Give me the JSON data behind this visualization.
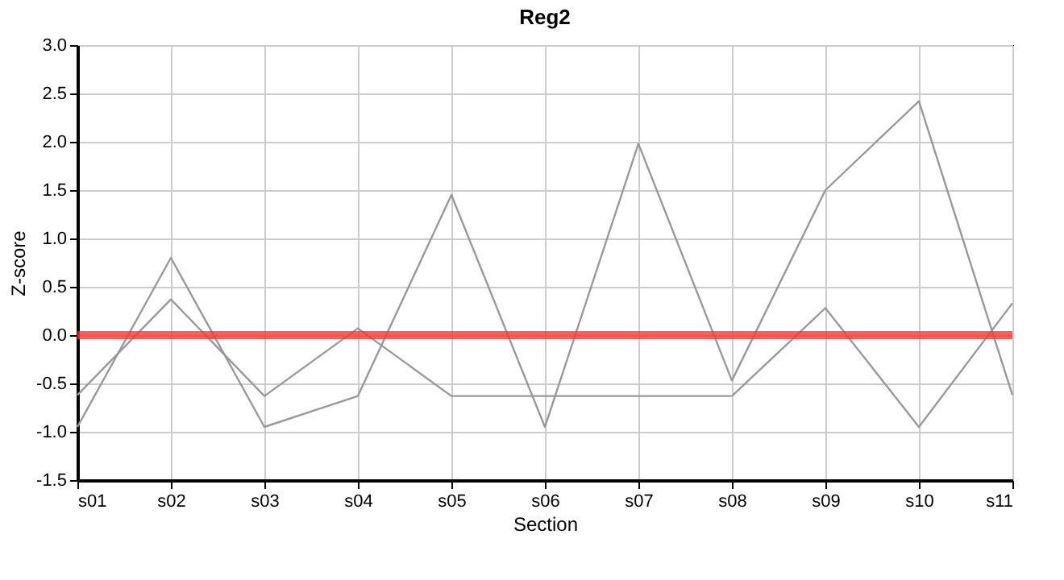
{
  "chart_data": {
    "type": "line",
    "title": "Reg2",
    "xlabel": "Section",
    "ylabel": "Z-score",
    "categories": [
      "s01",
      "s02",
      "s03",
      "s04",
      "s05",
      "s06",
      "s07",
      "s08",
      "s09",
      "s10",
      "s11"
    ],
    "series": [
      {
        "color": "#999999",
        "values": [
          -0.62,
          0.37,
          -0.63,
          0.07,
          -0.63,
          -0.63,
          -0.63,
          -0.63,
          0.28,
          -0.95,
          0.33
        ]
      },
      {
        "color": "#999999",
        "values": [
          -0.95,
          0.8,
          -0.95,
          -0.63,
          1.45,
          -0.95,
          1.98,
          -0.47,
          1.5,
          2.42,
          -0.62
        ]
      }
    ],
    "ylim": [
      -1.5,
      3.0
    ],
    "yticks": [
      {
        "value": -1.5,
        "label": "-1.5"
      },
      {
        "value": -1.0,
        "label": "-1.0"
      },
      {
        "value": -0.5,
        "label": "-0.5"
      },
      {
        "value": 0,
        "label": "0.0"
      },
      {
        "value": 0.5,
        "label": "0.5"
      },
      {
        "value": 1.0,
        "label": "1.0"
      },
      {
        "value": 1.5,
        "label": "1.5"
      },
      {
        "value": 2.0,
        "label": "2.0"
      },
      {
        "value": 2.5,
        "label": "2.5"
      },
      {
        "value": 3.0,
        "label": "3.0"
      }
    ],
    "ref_lines": [
      {
        "axis": "y",
        "value": 0,
        "color": "#ff3333"
      }
    ],
    "grid": true,
    "marker": "none",
    "line_style": "solid"
  }
}
